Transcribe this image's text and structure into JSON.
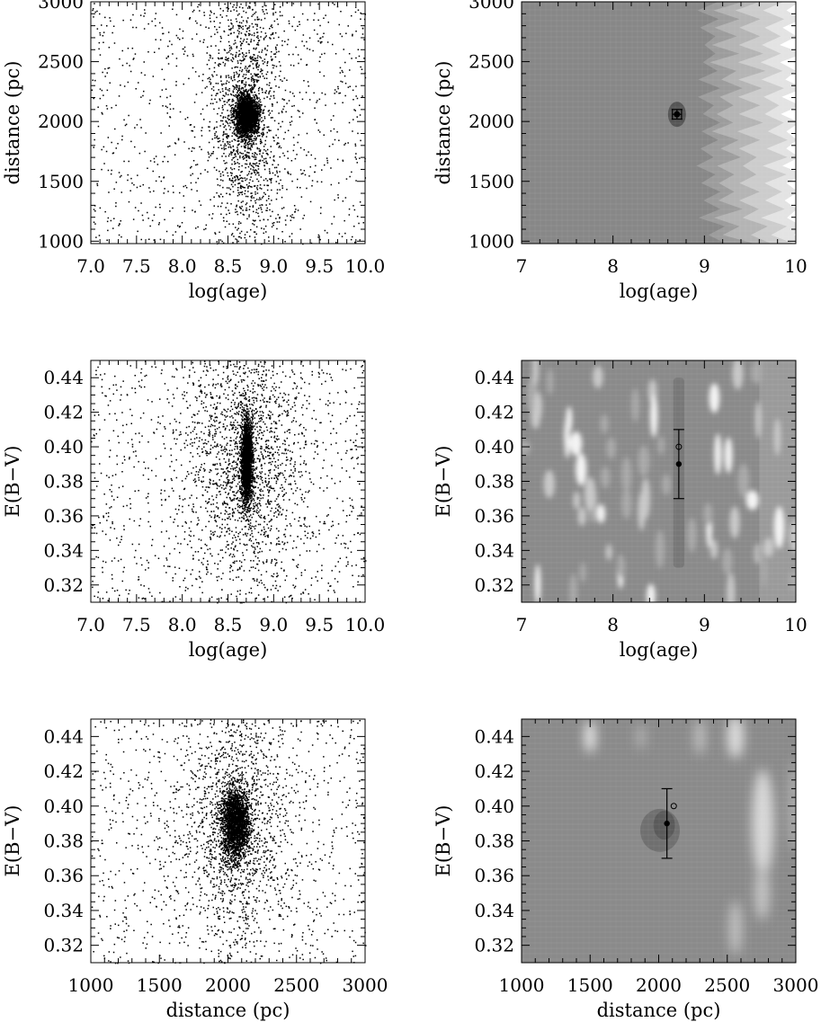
{
  "chart_data": [
    {
      "id": "p1",
      "type": "scatter",
      "panel": "top-left",
      "xlabel": "log(age)",
      "ylabel": "distance (pc)",
      "xlim": [
        7.0,
        10.0
      ],
      "ylim": [
        980,
        3000
      ],
      "xticks": [
        7.0,
        7.5,
        8.0,
        8.5,
        9.0,
        9.5,
        10.0
      ],
      "xtick_labels": [
        "7.0",
        "7.5",
        "8.0",
        "8.5",
        "9.0",
        "9.5",
        "10.0"
      ],
      "yticks": [
        1000,
        1500,
        2000,
        2500,
        3000
      ],
      "ytick_labels": [
        "1000",
        "1500",
        "2000",
        "2500",
        "3000"
      ],
      "cluster_center": {
        "x": 8.7,
        "y": 2050
      },
      "cluster_spread": {
        "x": 0.06,
        "y": 90
      },
      "background_spread": {
        "x": 0.45,
        "y": 600
      },
      "n_points": 4500
    },
    {
      "id": "p2",
      "type": "heatmap",
      "panel": "top-right",
      "xlabel": "log(age)",
      "ylabel": "distance (pc)",
      "xlim": [
        7,
        10
      ],
      "ylim": [
        980,
        3000
      ],
      "xticks": [
        7,
        8,
        9,
        10
      ],
      "xtick_labels": [
        "7",
        "8",
        "9",
        "10"
      ],
      "yticks": [
        1000,
        1500,
        2000,
        2500,
        3000
      ],
      "ytick_labels": [
        "1000",
        "1500",
        "2000",
        "2500",
        "3000"
      ],
      "best_fit": {
        "x": 8.7,
        "y": 2060,
        "xerr": 0.05,
        "yerr": 40
      },
      "marker_open": {
        "x": 8.7,
        "y": 2060
      }
    },
    {
      "id": "p3",
      "type": "scatter",
      "panel": "middle-left",
      "xlabel": "log(age)",
      "ylabel": "E(B−V)",
      "xlim": [
        7.0,
        10.0
      ],
      "ylim": [
        0.31,
        0.45
      ],
      "xticks": [
        7.0,
        7.5,
        8.0,
        8.5,
        9.0,
        9.5,
        10.0
      ],
      "xtick_labels": [
        "7.0",
        "7.5",
        "8.0",
        "8.5",
        "9.0",
        "9.5",
        "10.0"
      ],
      "yticks": [
        0.32,
        0.34,
        0.36,
        0.38,
        0.4,
        0.42,
        0.44
      ],
      "ytick_labels": [
        "0.32",
        "0.34",
        "0.36",
        "0.38",
        "0.40",
        "0.42",
        "0.44"
      ],
      "cluster_center": {
        "x": 8.7,
        "y": 0.392
      },
      "cluster_spread": {
        "x": 0.03,
        "y": 0.012
      },
      "background_spread": {
        "x": 0.7,
        "y": 0.04
      },
      "n_points": 5000
    },
    {
      "id": "p4",
      "type": "heatmap",
      "panel": "middle-right",
      "xlabel": "log(age)",
      "ylabel": "E(B−V)",
      "xlim": [
        7,
        10
      ],
      "ylim": [
        0.31,
        0.45
      ],
      "xticks": [
        7,
        8,
        9,
        10
      ],
      "xtick_labels": [
        "7",
        "8",
        "9",
        "10"
      ],
      "yticks": [
        0.32,
        0.34,
        0.36,
        0.38,
        0.4,
        0.42,
        0.44
      ],
      "ytick_labels": [
        "0.32",
        "0.34",
        "0.36",
        "0.38",
        "0.40",
        "0.42",
        "0.44"
      ],
      "best_fit": {
        "x": 8.72,
        "y": 0.39,
        "xerr": 0.0,
        "yerr": 0.02
      },
      "marker_open": {
        "x": 8.72,
        "y": 0.4
      }
    },
    {
      "id": "p5",
      "type": "scatter",
      "panel": "bottom-left",
      "xlabel": "distance (pc)",
      "ylabel": "E(B−V)",
      "xlim": [
        1000,
        3000
      ],
      "ylim": [
        0.31,
        0.45
      ],
      "xticks": [
        1000,
        1500,
        2000,
        2500,
        3000
      ],
      "xtick_labels": [
        "1000",
        "1500",
        "2000",
        "2500",
        "3000"
      ],
      "yticks": [
        0.32,
        0.34,
        0.36,
        0.38,
        0.4,
        0.42,
        0.44
      ],
      "ytick_labels": [
        "0.32",
        "0.34",
        "0.36",
        "0.38",
        "0.40",
        "0.42",
        "0.44"
      ],
      "cluster_center": {
        "x": 2050,
        "y": 0.39
      },
      "cluster_spread": {
        "x": 50,
        "y": 0.01
      },
      "background_spread": {
        "x": 420,
        "y": 0.04
      },
      "n_points": 4500
    },
    {
      "id": "p6",
      "type": "heatmap",
      "panel": "bottom-right",
      "xlabel": "distance (pc)",
      "ylabel": "E(B−V)",
      "xlim": [
        1000,
        3000
      ],
      "ylim": [
        0.31,
        0.45
      ],
      "xticks": [
        1000,
        1500,
        2000,
        2500,
        3000
      ],
      "xtick_labels": [
        "1000",
        "1500",
        "2000",
        "2500",
        "3000"
      ],
      "yticks": [
        0.32,
        0.34,
        0.36,
        0.38,
        0.4,
        0.42,
        0.44
      ],
      "ytick_labels": [
        "0.32",
        "0.34",
        "0.36",
        "0.38",
        "0.40",
        "0.42",
        "0.44"
      ],
      "best_fit": {
        "x": 2060,
        "y": 0.39,
        "xerr": 0.0,
        "yerr": 0.02
      },
      "marker_open": {
        "x": 2110,
        "y": 0.4
      }
    }
  ]
}
